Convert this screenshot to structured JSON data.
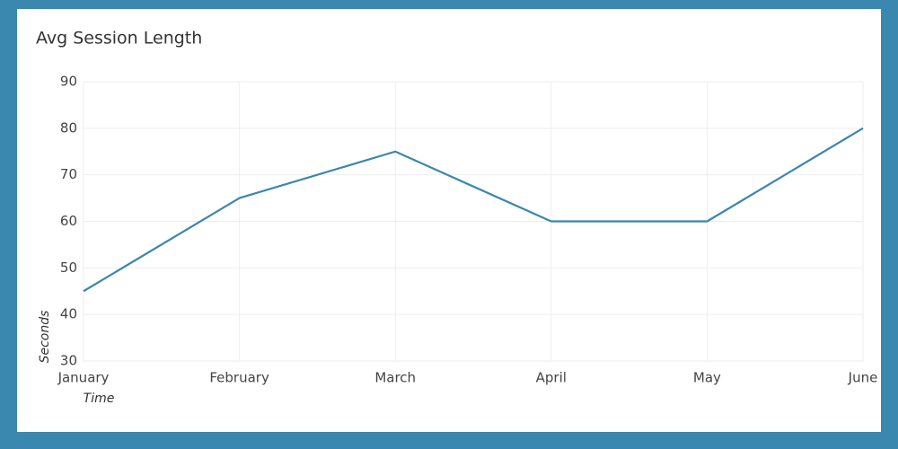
{
  "chart_data": {
    "type": "line",
    "title": "Avg Session Length",
    "x_label": "Time",
    "y_label": "Seconds",
    "categories": [
      "January",
      "February",
      "March",
      "April",
      "May",
      "June"
    ],
    "values": [
      45,
      65,
      75,
      60,
      60,
      80
    ],
    "color": "#3a87ad",
    "ylim": [
      30,
      90
    ],
    "yticks": [
      30,
      40,
      50,
      60,
      70,
      80,
      90
    ],
    "grid": true
  }
}
